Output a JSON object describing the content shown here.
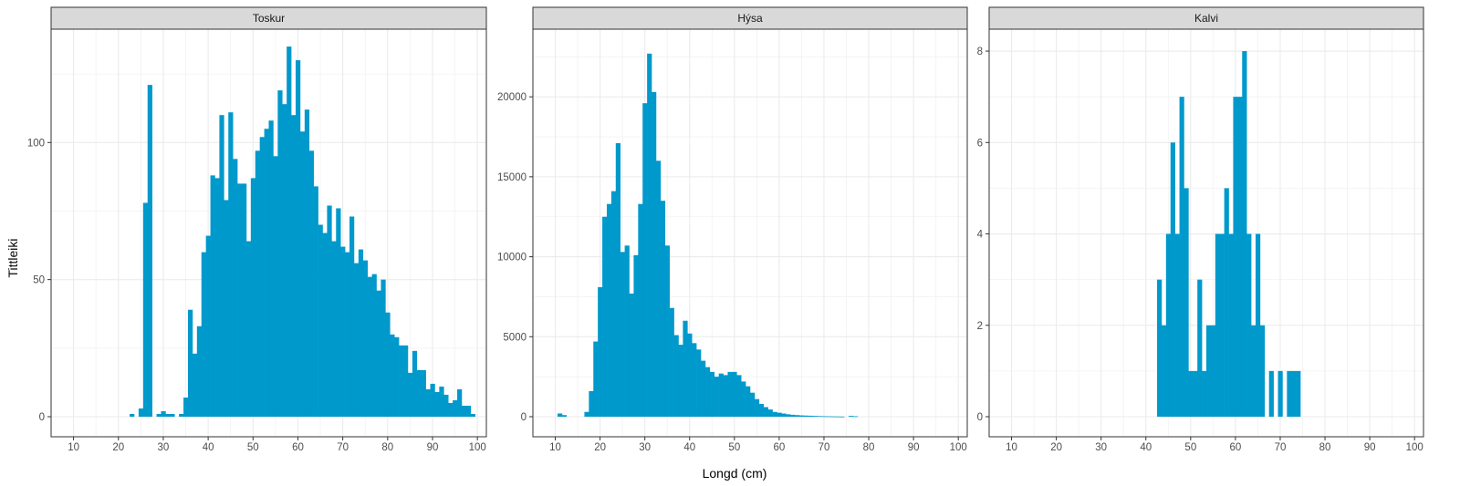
{
  "chart_data": {
    "type": "bar",
    "xlabel": "Longd (cm)",
    "ylabel": "Tittleiki",
    "xlim": [
      5,
      102
    ],
    "x_ticks": [
      10,
      20,
      30,
      40,
      50,
      60,
      70,
      80,
      90,
      100
    ],
    "grid": true,
    "bar_color": "#0099CC",
    "panels": [
      {
        "name": "Toskur",
        "ylim": [
          0,
          140
        ],
        "y_ticks": [
          0,
          50,
          100
        ],
        "x": [
          23,
          24,
          25,
          26,
          27,
          28,
          29,
          30,
          31,
          32,
          33,
          34,
          35,
          36,
          37,
          38,
          39,
          40,
          41,
          42,
          43,
          44,
          45,
          46,
          47,
          48,
          49,
          50,
          51,
          52,
          53,
          54,
          55,
          56,
          57,
          58,
          59,
          60,
          61,
          62,
          63,
          64,
          65,
          66,
          67,
          68,
          69,
          70,
          71,
          72,
          73,
          74,
          75,
          76,
          77,
          78,
          79,
          80,
          81,
          82,
          83,
          84,
          85,
          86,
          87,
          88,
          89,
          90,
          91,
          92,
          93,
          94,
          95,
          96,
          97,
          98,
          99
        ],
        "values": [
          1,
          0,
          3,
          78,
          121,
          0,
          1,
          2,
          1,
          1,
          0,
          1,
          7,
          39,
          23,
          33,
          60,
          66,
          88,
          87,
          110,
          79,
          111,
          94,
          85,
          85,
          64,
          87,
          97,
          102,
          105,
          108,
          95,
          119,
          114,
          135,
          110,
          130,
          104,
          112,
          97,
          84,
          70,
          67,
          77,
          64,
          76,
          62,
          60,
          73,
          56,
          61,
          57,
          51,
          52,
          46,
          50,
          38,
          30,
          29,
          26,
          26,
          16,
          24,
          17,
          17,
          10,
          12,
          9,
          11,
          8,
          5,
          6,
          10,
          4,
          4,
          1
        ]
      },
      {
        "name": "Hýsa",
        "ylim": [
          0,
          24000
        ],
        "y_ticks": [
          0,
          5000,
          10000,
          15000,
          20000
        ],
        "x": [
          11,
          12,
          13,
          14,
          15,
          16,
          17,
          18,
          19,
          20,
          21,
          22,
          23,
          24,
          25,
          26,
          27,
          28,
          29,
          30,
          31,
          32,
          33,
          34,
          35,
          36,
          37,
          38,
          39,
          40,
          41,
          42,
          43,
          44,
          45,
          46,
          47,
          48,
          49,
          50,
          51,
          52,
          53,
          54,
          55,
          56,
          57,
          58,
          59,
          60,
          61,
          62,
          63,
          64,
          65,
          66,
          67,
          68,
          69,
          70,
          71,
          72,
          73,
          74,
          75,
          76,
          77
        ],
        "values": [
          200,
          100,
          0,
          0,
          0,
          0,
          300,
          1600,
          4700,
          8100,
          12500,
          13300,
          14100,
          17100,
          10300,
          10700,
          7700,
          10100,
          13300,
          19600,
          22700,
          20300,
          16000,
          13500,
          10700,
          6800,
          5100,
          4500,
          6000,
          5200,
          4600,
          4200,
          3500,
          3100,
          2800,
          2500,
          2700,
          2600,
          2800,
          2800,
          2600,
          2200,
          1900,
          1500,
          1100,
          800,
          600,
          450,
          300,
          250,
          200,
          150,
          120,
          100,
          80,
          70,
          60,
          50,
          40,
          30,
          25,
          20,
          15,
          10,
          0,
          50,
          30
        ]
      },
      {
        "name": "Kalvi",
        "ylim": [
          0,
          8.4
        ],
        "y_ticks": [
          0,
          2,
          4,
          6,
          8
        ],
        "x": [
          43,
          44,
          45,
          46,
          47,
          48,
          49,
          50,
          51,
          52,
          53,
          54,
          55,
          56,
          57,
          58,
          59,
          60,
          61,
          62,
          63,
          64,
          65,
          66,
          67,
          68,
          69,
          70,
          71,
          72,
          73,
          74
        ],
        "values": [
          3,
          2,
          4,
          6,
          4,
          7,
          5,
          1,
          1,
          3,
          1,
          2,
          2,
          4,
          4,
          5,
          4,
          7,
          7,
          8,
          4,
          2,
          4,
          2,
          0,
          1,
          0,
          1,
          0,
          1,
          1,
          1
        ]
      }
    ]
  }
}
